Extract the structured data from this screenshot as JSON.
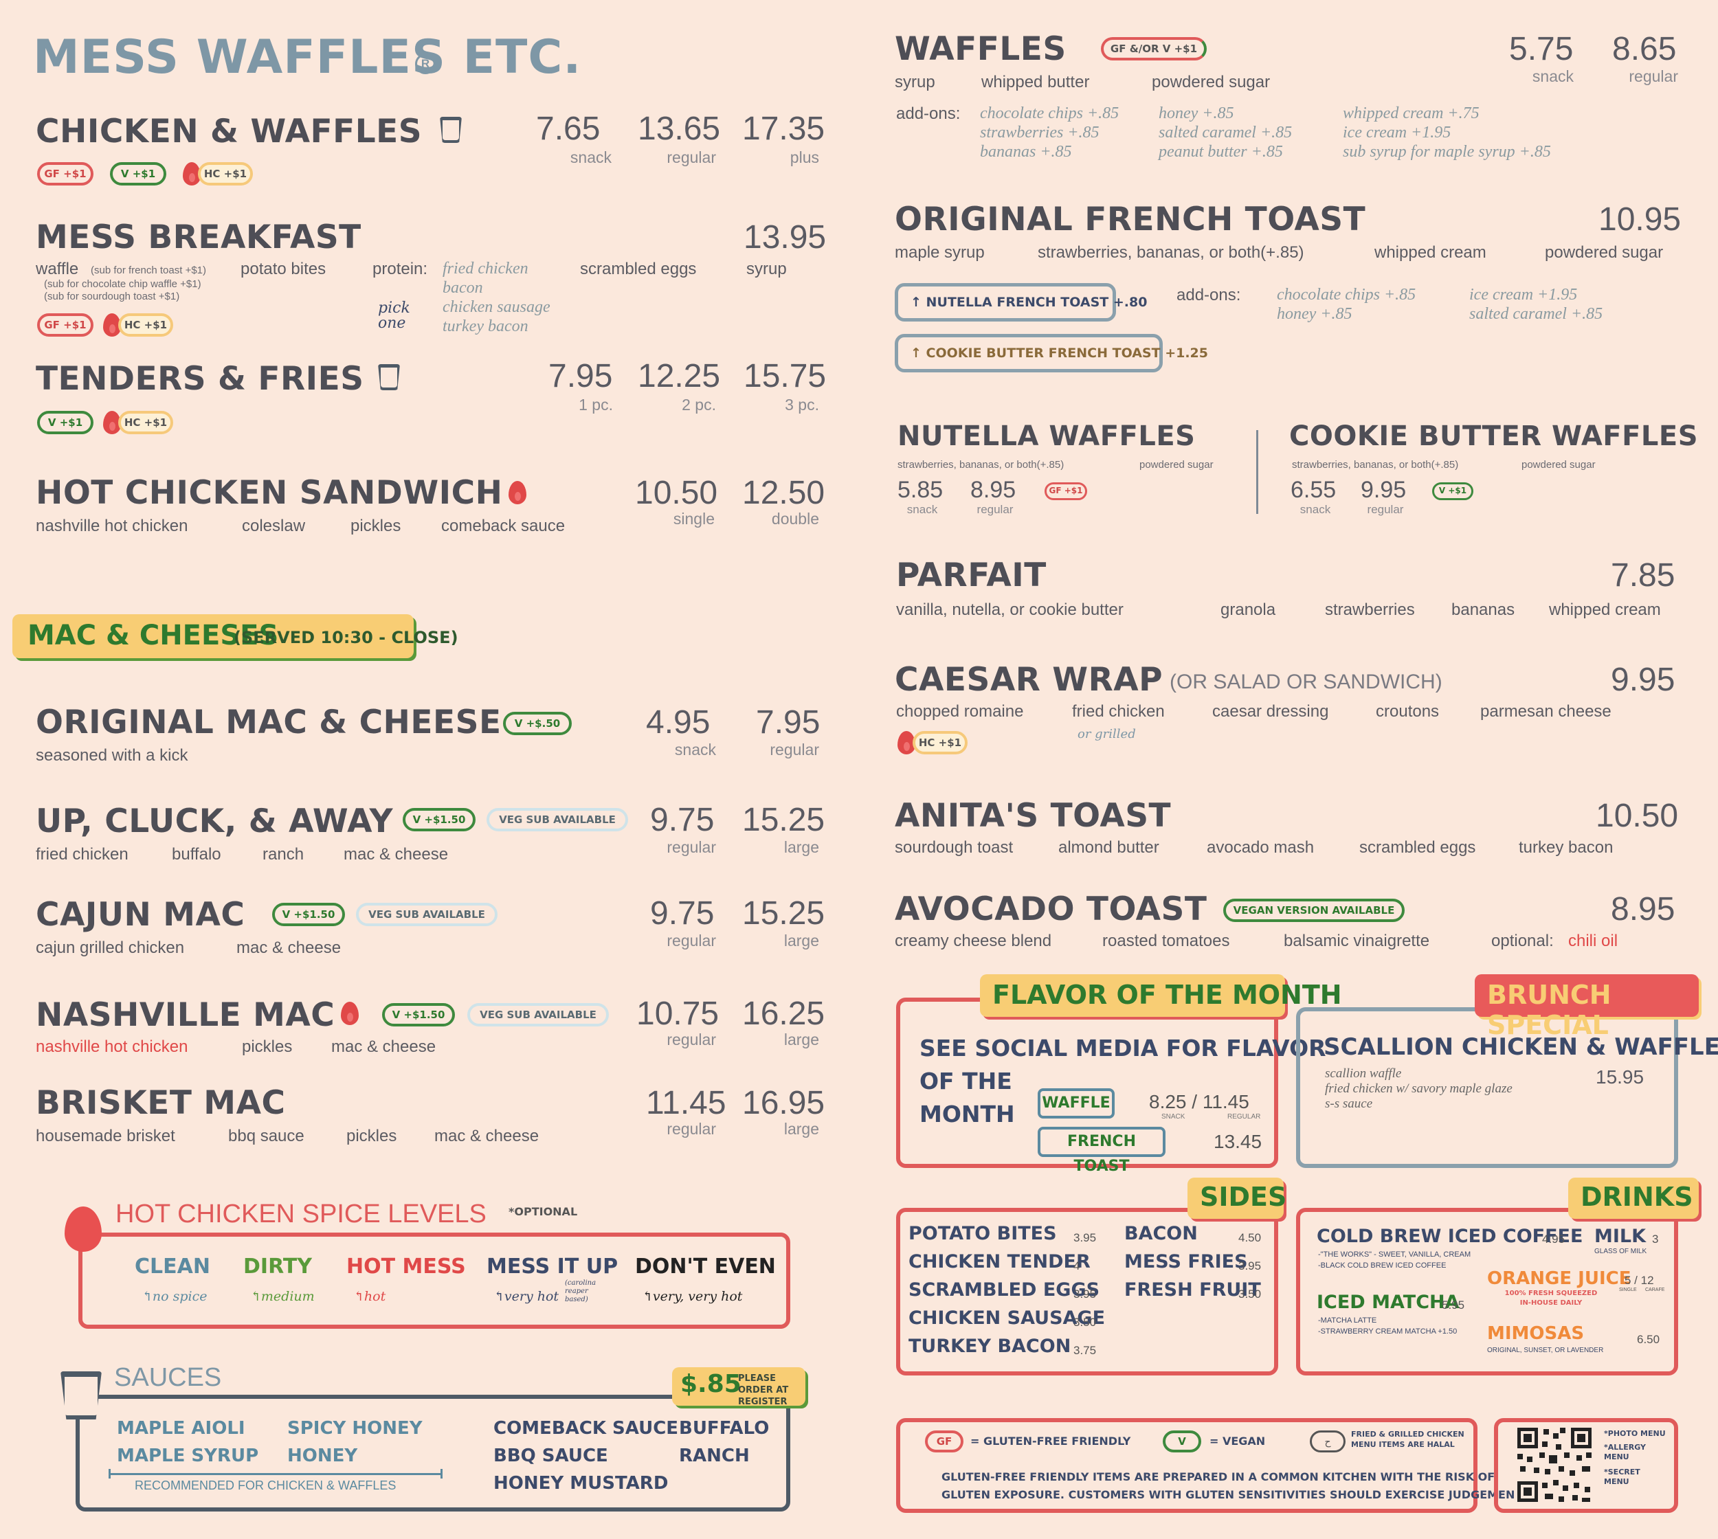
{
  "brand": {
    "name": "MESS WAFFLES ETC.",
    "reg": "R"
  },
  "left": {
    "chicken_waffles": {
      "title": "CHICKEN & WAFFLES",
      "prices": [
        "7.65",
        "13.65",
        "17.35"
      ],
      "labels": [
        "snack",
        "regular",
        "plus"
      ],
      "tags": [
        "GF +$1",
        "V +$1",
        "HC +$1"
      ]
    },
    "mess_breakfast": {
      "title": "MESS BREAKFAST",
      "price": "13.95",
      "items": [
        "waffle",
        "potato bites",
        "protein:",
        "scrambled eggs",
        "syrup"
      ],
      "waffle_subs": [
        "(sub for french toast +$1)",
        "(sub for chocolate chip waffle +$1)",
        "(sub for sourdough toast +$1)"
      ],
      "proteins": [
        "fried chicken",
        "bacon",
        "chicken sausage",
        "turkey bacon"
      ],
      "pick": "pick one",
      "tags": [
        "GF +$1",
        "HC +$1"
      ]
    },
    "tenders_fries": {
      "title": "TENDERS & FRIES",
      "prices": [
        "7.95",
        "12.25",
        "15.75"
      ],
      "labels": [
        "1 pc.",
        "2 pc.",
        "3 pc."
      ],
      "tags": [
        "V +$1",
        "HC +$1"
      ]
    },
    "hot_chicken_sandwich": {
      "title": "HOT CHICKEN SANDWICH",
      "prices": [
        "10.50",
        "12.50"
      ],
      "labels": [
        "single",
        "double"
      ],
      "items": [
        "nashville hot chicken",
        "coleslaw",
        "pickles",
        "comeback sauce"
      ]
    },
    "mac_header": {
      "title": "MAC & CHEESES",
      "sub": "(SERVED 10:30 - CLOSE)"
    },
    "original_mac": {
      "title": "ORIGINAL MAC & CHEESE",
      "tag": "V +$.50",
      "prices": [
        "4.95",
        "7.95"
      ],
      "labels": [
        "snack",
        "regular"
      ],
      "desc": "seasoned with a kick"
    },
    "up_cluck": {
      "title": "UP, CLUCK, & AWAY",
      "tag": "V +$1.50",
      "veg": "VEG SUB AVAILABLE",
      "prices": [
        "9.75",
        "15.25"
      ],
      "labels": [
        "regular",
        "large"
      ],
      "items": [
        "fried chicken",
        "buffalo",
        "ranch",
        "mac & cheese"
      ]
    },
    "cajun_mac": {
      "title": "CAJUN MAC",
      "tag": "V +$1.50",
      "veg": "VEG SUB AVAILABLE",
      "prices": [
        "9.75",
        "15.25"
      ],
      "labels": [
        "regular",
        "large"
      ],
      "items": [
        "cajun grilled chicken",
        "mac & cheese"
      ]
    },
    "nashville_mac": {
      "title": "NASHVILLE MAC",
      "tag": "V +$1.50",
      "veg": "VEG SUB AVAILABLE",
      "prices": [
        "10.75",
        "16.25"
      ],
      "labels": [
        "regular",
        "large"
      ],
      "items": [
        "nashville hot chicken",
        "pickles",
        "mac & cheese"
      ]
    },
    "brisket_mac": {
      "title": "BRISKET MAC",
      "prices": [
        "11.45",
        "16.95"
      ],
      "labels": [
        "regular",
        "large"
      ],
      "items": [
        "housemade brisket",
        "bbq sauce",
        "pickles",
        "mac & cheese"
      ]
    },
    "spice": {
      "title": "HOT CHICKEN SPICE LEVELS",
      "optional": "*OPTIONAL",
      "levels": [
        {
          "name": "CLEAN",
          "note": "no spice",
          "color": "#5b8aa0"
        },
        {
          "name": "DIRTY",
          "note": "medium",
          "color": "#5a9a3a"
        },
        {
          "name": "HOT MESS",
          "note": "hot",
          "color": "#e04848"
        },
        {
          "name": "MESS IT UP",
          "note": "very hot",
          "extra": "(carolina reaper based)",
          "color": "#3c4a6a"
        },
        {
          "name": "DON'T EVEN",
          "note": "very, very hot",
          "color": "#222222"
        }
      ]
    },
    "sauces": {
      "title": "SAUCES",
      "price": "$.85",
      "order": "PLEASE ORDER AT REGISTER",
      "col1": [
        "MAPLE AIOLI",
        "MAPLE SYRUP"
      ],
      "col2": [
        "SPICY HONEY",
        "HONEY"
      ],
      "rec": "RECOMMENDED FOR CHICKEN & WAFFLES",
      "col3": [
        "COMEBACK SAUCE",
        "BBQ SAUCE",
        "HONEY MUSTARD"
      ],
      "col4": [
        "BUFFALO",
        "RANCH"
      ]
    }
  },
  "right": {
    "waffles": {
      "title": "WAFFLES",
      "tag": "GF &/OR V +$1",
      "prices": [
        "5.75",
        "8.65"
      ],
      "labels": [
        "snack",
        "regular"
      ],
      "items": [
        "syrup",
        "whipped butter",
        "powdered sugar"
      ],
      "addons_label": "add-ons:",
      "addons": [
        "chocolate chips +.85",
        "strawberries +.85",
        "bananas +.85",
        "honey +.85",
        "salted caramel +.85",
        "peanut butter +.85",
        "whipped cream +.75",
        "ice cream +1.95",
        "sub syrup for maple syrup +.85"
      ]
    },
    "french_toast": {
      "title": "ORIGINAL FRENCH TOAST",
      "price": "10.95",
      "items": [
        "maple syrup",
        "strawberries, bananas, or both(+.85)",
        "whipped cream",
        "powdered sugar"
      ],
      "upgrades": [
        "NUTELLA FRENCH TOAST +.80",
        "COOKIE BUTTER FRENCH TOAST +1.25"
      ],
      "addons_label": "add-ons:",
      "addons": [
        "chocolate chips +.85",
        "honey +.85",
        "ice cream +1.95",
        "salted caramel +.85"
      ]
    },
    "nutella_waffles": {
      "title": "NUTELLA WAFFLES",
      "items": [
        "strawberries, bananas, or both(+.85)",
        "powdered sugar"
      ],
      "prices": [
        "5.85",
        "8.95"
      ],
      "labels": [
        "snack",
        "regular"
      ],
      "tag": "GF +$1"
    },
    "cookie_waffles": {
      "title": "COOKIE BUTTER WAFFLES",
      "items": [
        "strawberries, bananas, or both(+.85)",
        "powdered sugar"
      ],
      "prices": [
        "6.55",
        "9.95"
      ],
      "labels": [
        "snack",
        "regular"
      ],
      "tag": "V +$1"
    },
    "parfait": {
      "title": "PARFAIT",
      "price": "7.85",
      "items": [
        "vanilla, nutella, or cookie butter",
        "granola",
        "strawberries",
        "bananas",
        "whipped cream"
      ]
    },
    "caesar": {
      "title": "CAESAR WRAP",
      "sub": "(OR SALAD OR SANDWICH)",
      "price": "9.95",
      "items": [
        "chopped romaine",
        "fried chicken",
        "caesar dressing",
        "croutons",
        "parmesan cheese"
      ],
      "note": "or grilled",
      "tag": "HC +$1"
    },
    "anitas": {
      "title": "ANITA'S TOAST",
      "price": "10.50",
      "items": [
        "sourdough toast",
        "almond butter",
        "avocado mash",
        "scrambled eggs",
        "turkey bacon"
      ]
    },
    "avocado": {
      "title": "AVOCADO TOAST",
      "tag": "VEGAN VERSION AVAILABLE",
      "price": "8.95",
      "items": [
        "creamy cheese blend",
        "roasted tomatoes",
        "balsamic vinaigrette"
      ],
      "optional": "optional:",
      "chili": "chili oil"
    },
    "flavor": {
      "header": "FLAVOR OF THE MONTH",
      "text": [
        "SEE SOCIAL MEDIA FOR FLAVOR",
        "OF THE",
        "MONTH"
      ],
      "waffle": "WAFFLE",
      "waffle_prices": "8.25 / 11.45",
      "snack": "SNACK",
      "regular": "REGULAR",
      "toast": "FRENCH TOAST",
      "toast_price": "13.45"
    },
    "brunch": {
      "header": "BRUNCH SPECIAL",
      "title": "SCALLION CHICKEN & WAFFLES",
      "price": "15.95",
      "items": [
        "scallion waffle",
        "fried chicken w/ savory maple glaze",
        "s-s sauce"
      ]
    },
    "sides": {
      "header": "SIDES",
      "col1": [
        [
          "POTATO BITES",
          "3.95"
        ],
        [
          "CHICKEN TENDER",
          "4"
        ],
        [
          "SCRAMBLED EGGS",
          "3.95"
        ],
        [
          "CHICKEN SAUSAGE",
          "3.50"
        ],
        [
          "TURKEY BACON",
          "3.75"
        ]
      ],
      "col2": [
        [
          "BACON",
          "4.50"
        ],
        [
          "MESS FRIES",
          "3.95"
        ],
        [
          "FRESH FRUIT",
          "3.50"
        ]
      ]
    },
    "drinks": {
      "header": "DRINKS",
      "cold_brew": "COLD BREW ICED COFFEE",
      "cold_brew_price": "4.95",
      "cold_brew_notes": [
        "-\"THE WORKS\" - SWEET, VANILLA, CREAM",
        "-BLACK COLD BREW ICED COFFEE"
      ],
      "matcha": "ICED MATCHA",
      "matcha_price": "5.95",
      "matcha_notes": [
        "-MATCHA LATTE",
        "-STRAWBERRY CREAM MATCHA +1.50"
      ],
      "milk": "MILK",
      "milk_price": "3",
      "milk_note": "GLASS OF MILK",
      "oj": "ORANGE JUICE",
      "oj_price": "5 / 12",
      "oj_labels": [
        "SINGLE",
        "CARAFE"
      ],
      "oj_note": "100% FRESH SQUEEZED IN-HOUSE DAILY",
      "mimosas": "MIMOSAS",
      "mimosas_price": "6.50",
      "mimosas_note": "ORIGINAL, SUNSET, OR LAVENDER"
    },
    "legend": {
      "gf": "GF",
      "gf_text": "= GLUTEN-FREE FRIENDLY",
      "v": "V",
      "v_text": "= VEGAN",
      "halal": "FRIED & GRILLED CHICKEN MENU ITEMS ARE HALAL",
      "warning1": "GLUTEN-FREE FRIENDLY ITEMS ARE PREPARED IN A COMMON KITCHEN WITH THE RISK OF",
      "warning2": "GLUTEN EXPOSURE. CUSTOMERS WITH GLUTEN SENSITIVITIES SHOULD EXERCISE JUDGEMENT."
    },
    "qr": {
      "notes": [
        "*PHOTO MENU",
        "*ALLERGY MENU",
        "*SECRET MENU"
      ]
    }
  }
}
